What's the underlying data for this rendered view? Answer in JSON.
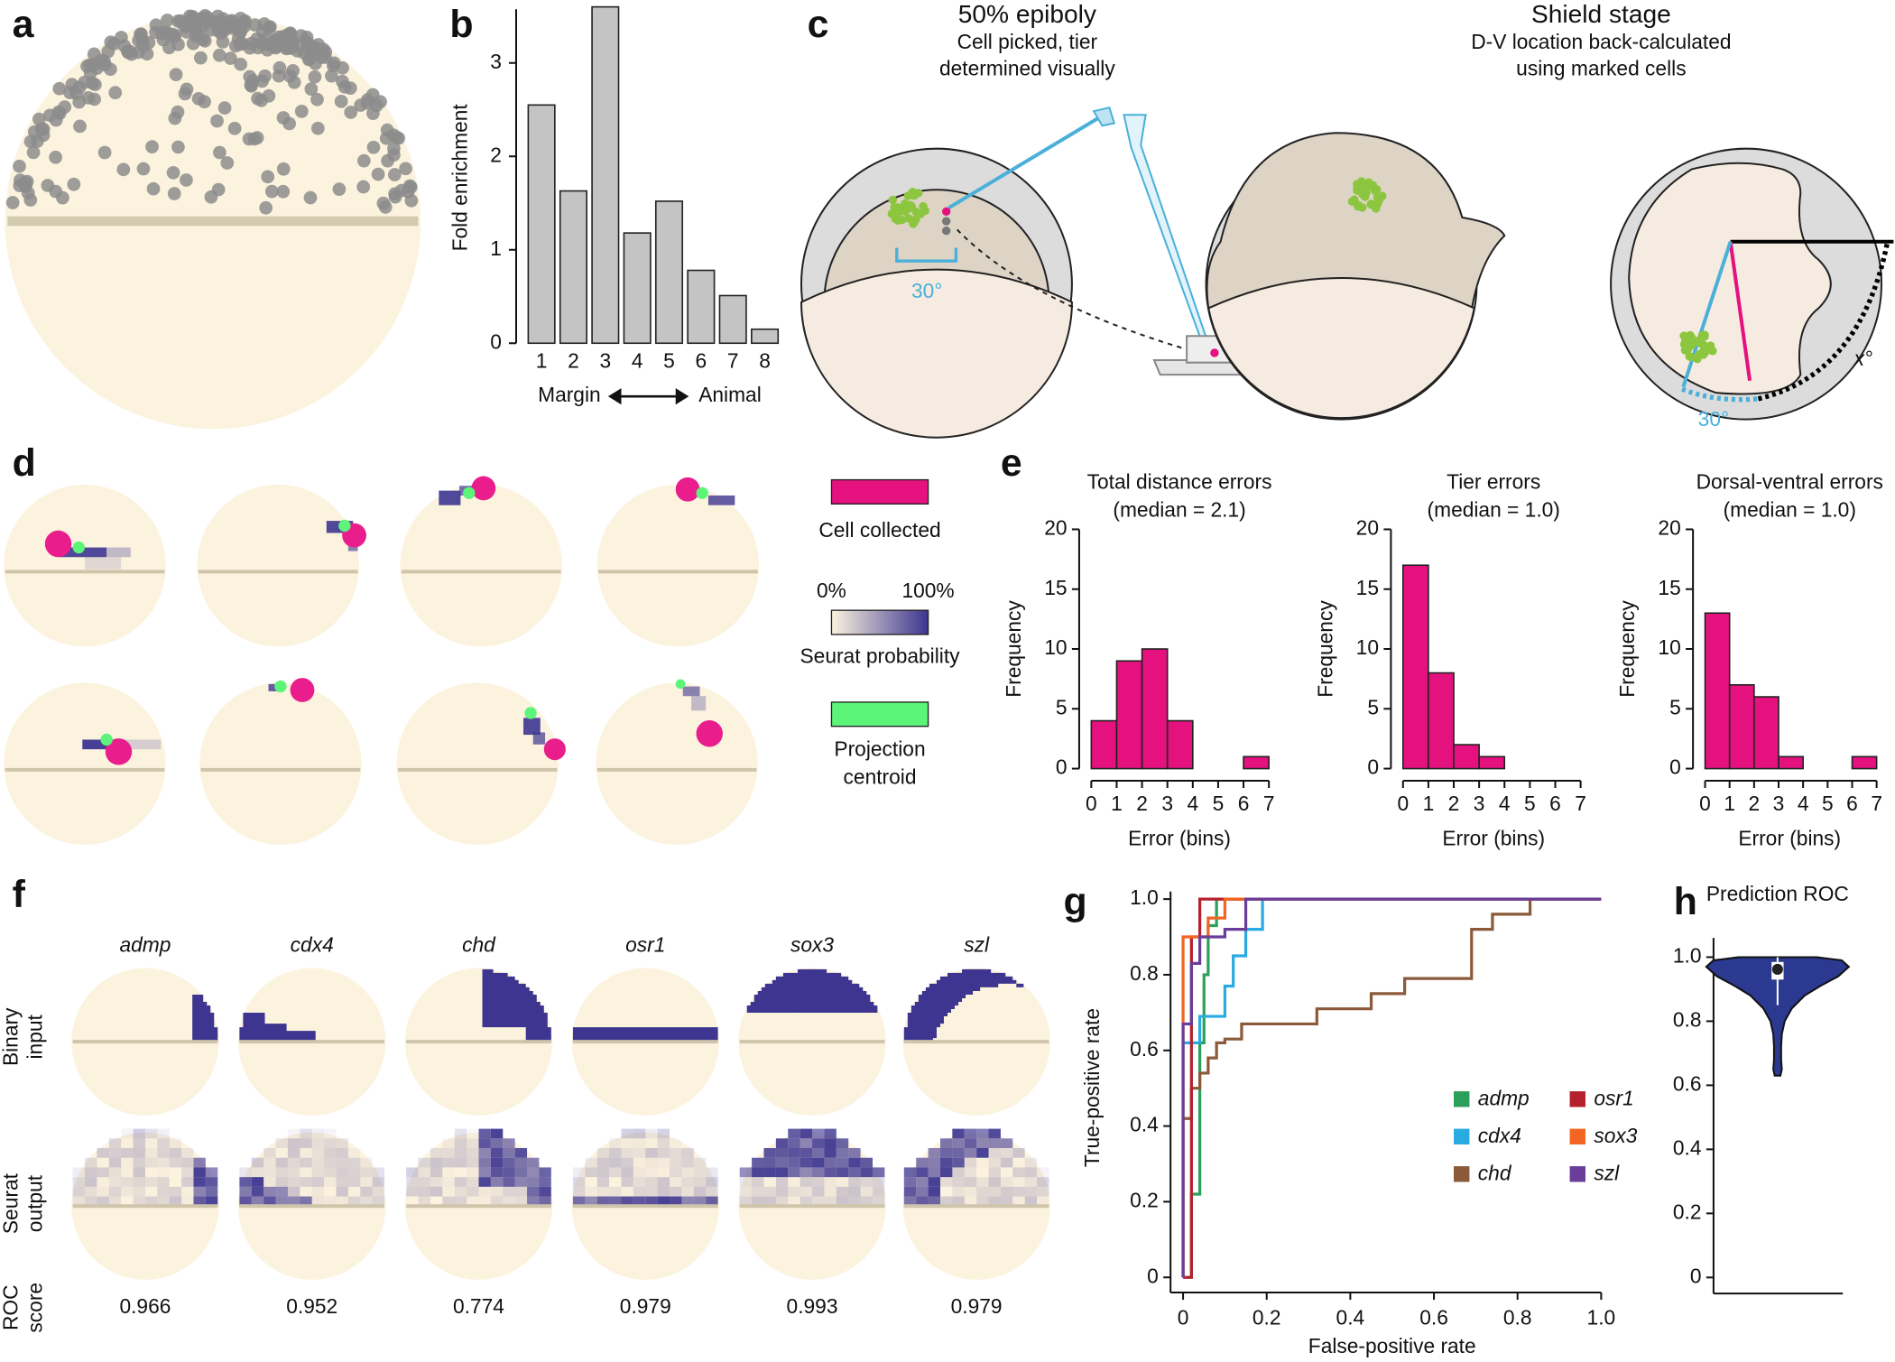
{
  "panel_labels": [
    "a",
    "b",
    "c",
    "d",
    "e",
    "f",
    "g",
    "h"
  ],
  "panel_c": {
    "left_title": "50% epiboly",
    "left_lines": [
      "Cell picked, tier",
      "determined visually"
    ],
    "right_title": "Shield stage",
    "right_lines": [
      "D-V location back-calculated",
      "using marked cells"
    ],
    "angle_labels": [
      "30°",
      "30°",
      "x°"
    ]
  },
  "panel_d": {
    "cell": "Cell collected",
    "scale_min": "0%",
    "scale_max": "100%",
    "probability": "Seurat probability",
    "centroid": [
      "Projection",
      "centroid"
    ]
  },
  "panel_f": {
    "genes": [
      "admp",
      "cdx4",
      "chd",
      "osr1",
      "sox3",
      "szl"
    ],
    "row_labels": [
      [
        "Binary",
        "input"
      ],
      [
        "Seurat",
        "output"
      ],
      [
        "ROC",
        "score"
      ]
    ],
    "roc_scores": [
      0.966,
      0.952,
      0.774,
      0.979,
      0.993,
      0.979
    ]
  },
  "chart_data": [
    {
      "type": "bar",
      "ylabel": "Fold enrichment",
      "xlabel": [
        "Margin",
        "Animal"
      ],
      "categories": [
        "1",
        "2",
        "3",
        "4",
        "5",
        "6",
        "7",
        "8"
      ],
      "values": [
        2.55,
        1.63,
        3.6,
        1.18,
        1.52,
        0.78,
        0.51,
        0.15
      ],
      "color": "#c4c4c4",
      "ylim": [
        0,
        3.6
      ],
      "yticks": [
        0,
        1,
        2,
        3
      ]
    },
    {
      "type": "histogram",
      "title": "Total distance errors",
      "subtitle": "(median = 2.1)",
      "xlabel": "Error (bins)",
      "ylabel": "Frequency",
      "bins": [
        0,
        1,
        2,
        3,
        4,
        5,
        6,
        7
      ],
      "values": [
        4,
        9,
        10,
        4,
        0,
        0,
        1
      ],
      "color": "#e4117f",
      "xlim": [
        0,
        7
      ],
      "xticks": [
        0,
        1,
        2,
        3,
        4,
        5,
        6,
        7
      ],
      "ylim": [
        0,
        20
      ],
      "yticks": [
        0,
        5,
        10,
        15,
        20
      ]
    },
    {
      "type": "histogram",
      "title": "Tier errors",
      "subtitle": "(median = 1.0)",
      "xlabel": "Error (bins)",
      "ylabel": "Frequency",
      "bins": [
        0,
        1,
        2,
        3,
        4,
        5,
        6,
        7
      ],
      "values": [
        17,
        8,
        2,
        1,
        0,
        0,
        0
      ],
      "color": "#e4117f",
      "xlim": [
        0,
        7
      ],
      "xticks": [
        0,
        1,
        2,
        3,
        4,
        5,
        6,
        7
      ],
      "ylim": [
        0,
        20
      ],
      "yticks": [
        0,
        5,
        10,
        15,
        20
      ]
    },
    {
      "type": "histogram",
      "title": "Dorsal-ventral errors",
      "subtitle": "(median = 1.0)",
      "xlabel": "Error (bins)",
      "ylabel": "Frequency",
      "bins": [
        0,
        1,
        2,
        3,
        4,
        5,
        6,
        7
      ],
      "values": [
        13,
        7,
        6,
        1,
        0,
        0,
        1
      ],
      "color": "#e4117f",
      "xlim": [
        0,
        7
      ],
      "xticks": [
        0,
        1,
        2,
        3,
        4,
        5,
        6,
        7
      ],
      "ylim": [
        0,
        20
      ],
      "yticks": [
        0,
        5,
        10,
        15,
        20
      ]
    },
    {
      "type": "line",
      "xlabel": "False-positive rate",
      "ylabel": "True-positive rate",
      "legend": "lower right",
      "xlim": [
        -0.03,
        1.0
      ],
      "xticks": [
        0,
        0.2,
        0.4,
        0.6,
        0.8,
        {
          "value": 1,
          "label": "1.0"
        }
      ],
      "ylim": [
        -0.04,
        1.02
      ],
      "yticks": [
        0,
        0.2,
        0.4,
        0.6,
        0.8,
        {
          "value": 1,
          "label": "1.0"
        }
      ],
      "series": [
        {
          "name": "admp",
          "color": "#2ca05a",
          "x": [
            0.02,
            0.02,
            0.04,
            0.04,
            0.05,
            0.05,
            0.06,
            0.06,
            0.08,
            0.08,
            1.0
          ],
          "values": [
            0,
            0.22,
            0.22,
            0.62,
            0.62,
            0.8,
            0.8,
            0.93,
            0.93,
            1,
            1
          ]
        },
        {
          "name": "cdx4",
          "color": "#29aae1",
          "x": [
            0,
            0,
            0.04,
            0.04,
            0.1,
            0.1,
            0.12,
            0.12,
            0.15,
            0.15,
            0.19,
            0.19,
            1.0
          ],
          "values": [
            0,
            0.62,
            0.62,
            0.69,
            0.69,
            0.77,
            0.77,
            0.85,
            0.85,
            0.92,
            0.92,
            1,
            1
          ]
        },
        {
          "name": "chd",
          "color": "#8b5a3a",
          "x": [
            0,
            0,
            0.02,
            0.02,
            0.04,
            0.04,
            0.06,
            0.06,
            0.08,
            0.08,
            0.1,
            0.1,
            0.14,
            0.14,
            0.19,
            0.19,
            0.32,
            0.32,
            0.45,
            0.45,
            0.53,
            0.53,
            0.69,
            0.69,
            0.74,
            0.74,
            0.83,
            0.83,
            1.0
          ],
          "values": [
            0,
            0.42,
            0.42,
            0.5,
            0.5,
            0.54,
            0.54,
            0.58,
            0.58,
            0.62,
            0.62,
            0.63,
            0.63,
            0.67,
            0.67,
            0.67,
            0.67,
            0.71,
            0.71,
            0.75,
            0.75,
            0.79,
            0.79,
            0.92,
            0.92,
            0.96,
            0.96,
            1,
            1
          ]
        },
        {
          "name": "osr1",
          "color": "#b5202e",
          "x": [
            0,
            0.02,
            0.02,
            0.04,
            0.04,
            1.0
          ],
          "values": [
            0,
            0,
            0.9,
            0.9,
            1,
            1
          ]
        },
        {
          "name": "sox3",
          "color": "#f26522",
          "x": [
            0,
            0,
            0.06,
            0.06,
            0.1,
            0.1,
            1.0
          ],
          "values": [
            0,
            0.9,
            0.9,
            0.95,
            0.95,
            1,
            1
          ]
        },
        {
          "name": "szl",
          "color": "#6a3d9a",
          "x": [
            0,
            0,
            0.02,
            0.02,
            0.04,
            0.04,
            0.1,
            0.1,
            0.15,
            0.15,
            1.0
          ],
          "values": [
            0,
            0.67,
            0.67,
            0.83,
            0.83,
            0.9,
            0.9,
            0.92,
            0.92,
            1,
            1
          ]
        }
      ]
    },
    {
      "type": "violin",
      "title": "Prediction ROC",
      "color": "#2b3990",
      "ylim": [
        -0.05,
        1.06
      ],
      "yticks": [
        0,
        0.2,
        0.4,
        0.6,
        0.8,
        {
          "value": 1,
          "label": "1.0"
        }
      ],
      "violin": {
        "y": [
          0.63,
          0.65,
          0.68,
          0.72,
          0.76,
          0.8,
          0.84,
          0.88,
          0.91,
          0.94,
          0.97,
          0.99,
          1.0
        ],
        "width": [
          0.04,
          0.06,
          0.05,
          0.05,
          0.06,
          0.1,
          0.2,
          0.38,
          0.6,
          0.85,
          1.0,
          0.9,
          0.55
        ]
      },
      "whisker_low": 0.85,
      "q1": 0.93,
      "median": 0.962,
      "q3": 0.985,
      "whisker_high": 1.0
    }
  ]
}
